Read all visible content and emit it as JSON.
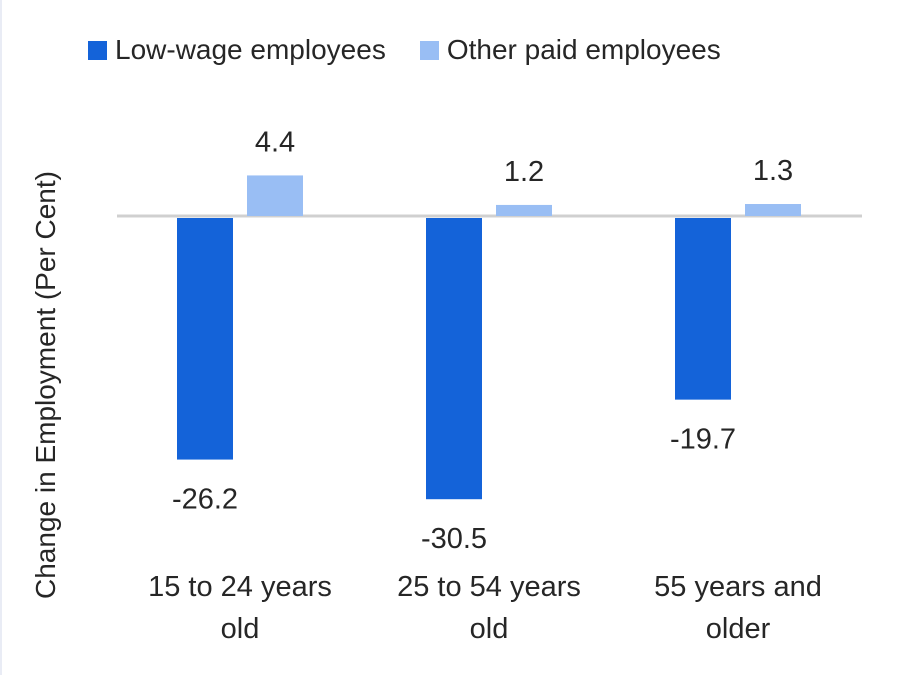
{
  "chart_data": {
    "type": "bar",
    "categories": [
      "15 to 24 years old",
      "25 to 54 years old",
      "55 years and older"
    ],
    "category_lines": [
      [
        "15 to 24 years",
        "old"
      ],
      [
        "25 to 54 years",
        "old"
      ],
      [
        "55 years and",
        "older"
      ]
    ],
    "series": [
      {
        "name": "Low-wage employees",
        "values": [
          -26.2,
          -30.5,
          -19.7
        ],
        "labels": [
          "-26.2",
          "-30.5",
          "-19.7"
        ],
        "color": "#1463d9"
      },
      {
        "name": "Other paid employees",
        "values": [
          4.4,
          1.2,
          1.3
        ],
        "labels": [
          "4.4",
          "1.2",
          "1.3"
        ],
        "color": "#99bef4"
      }
    ],
    "ylabel": "Change in Employment (Per Cent)",
    "ylim": [
      -32,
      8
    ],
    "grid": false,
    "legend": "top",
    "zero_line_color": "#d0d0d0"
  }
}
